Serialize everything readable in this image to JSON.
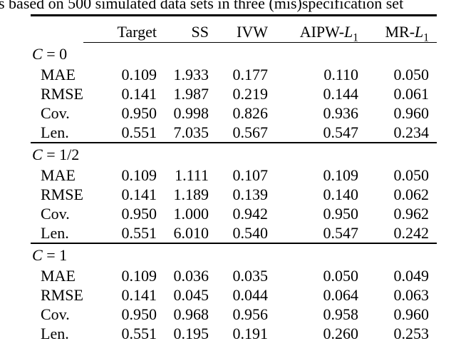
{
  "caption": "s based on 500 simulated data sets in three (mis)specification set",
  "colors": {
    "text": "#000000",
    "background": "#ffffff",
    "rule": "#000000"
  },
  "table": {
    "headers": [
      {
        "prefix": "Target",
        "var": "",
        "sub": ""
      },
      {
        "prefix": "SS",
        "var": "",
        "sub": ""
      },
      {
        "prefix": "IVW",
        "var": "",
        "sub": ""
      },
      {
        "prefix": "AIPW-",
        "var": "L",
        "sub": "1"
      },
      {
        "prefix": "MR-",
        "var": "L",
        "sub": "1"
      }
    ],
    "groups": [
      {
        "id": "c0",
        "var": "C",
        "value": "0",
        "rows": [
          {
            "label": "MAE",
            "values": [
              "0.109",
              "1.933",
              "0.177",
              "0.110",
              "0.050"
            ]
          },
          {
            "label": "RMSE",
            "values": [
              "0.141",
              "1.987",
              "0.219",
              "0.144",
              "0.061"
            ]
          },
          {
            "label": "Cov.",
            "values": [
              "0.950",
              "0.998",
              "0.826",
              "0.936",
              "0.960"
            ]
          },
          {
            "label": "Len.",
            "values": [
              "0.551",
              "7.035",
              "0.567",
              "0.547",
              "0.234"
            ]
          }
        ]
      },
      {
        "id": "c-half",
        "var": "C",
        "value": "1/2",
        "rows": [
          {
            "label": "MAE",
            "values": [
              "0.109",
              "1.111",
              "0.107",
              "0.109",
              "0.050"
            ]
          },
          {
            "label": "RMSE",
            "values": [
              "0.141",
              "1.189",
              "0.139",
              "0.140",
              "0.062"
            ]
          },
          {
            "label": "Cov.",
            "values": [
              "0.950",
              "1.000",
              "0.942",
              "0.950",
              "0.962"
            ]
          },
          {
            "label": "Len.",
            "values": [
              "0.551",
              "6.010",
              "0.540",
              "0.547",
              "0.242"
            ]
          }
        ]
      },
      {
        "id": "c1",
        "var": "C",
        "value": "1",
        "rows": [
          {
            "label": "MAE",
            "values": [
              "0.109",
              "0.036",
              "0.035",
              "0.050",
              "0.049"
            ]
          },
          {
            "label": "RMSE",
            "values": [
              "0.141",
              "0.045",
              "0.044",
              "0.064",
              "0.063"
            ]
          },
          {
            "label": "Cov.",
            "values": [
              "0.950",
              "0.968",
              "0.956",
              "0.958",
              "0.960"
            ]
          },
          {
            "label": "Len.",
            "values": [
              "0.551",
              "0.195",
              "0.191",
              "0.260",
              "0.253"
            ]
          }
        ]
      }
    ]
  }
}
